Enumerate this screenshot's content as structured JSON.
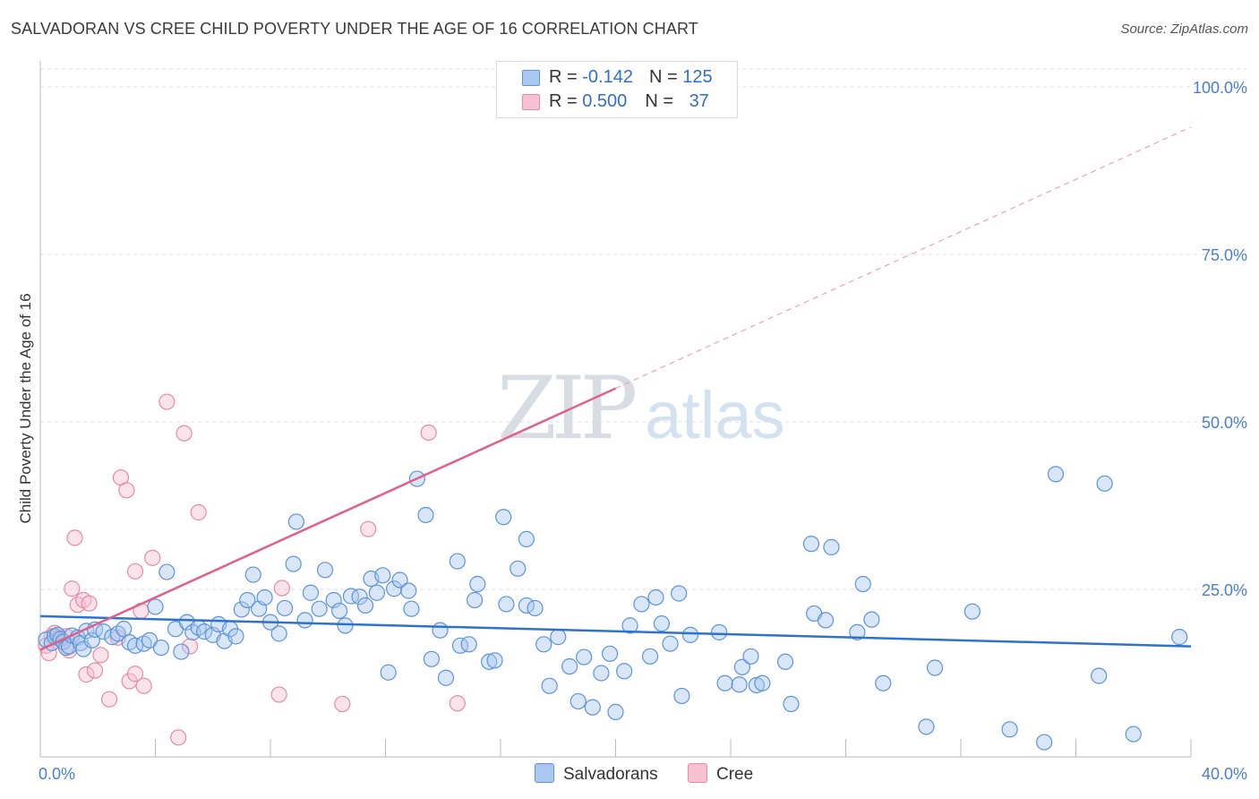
{
  "header": {
    "title": "SALVADORAN VS CREE CHILD POVERTY UNDER THE AGE OF 16 CORRELATION CHART",
    "source": "Source: ZipAtlas.com"
  },
  "watermark": {
    "zip": "ZIP",
    "atlas": "atlas"
  },
  "stats": {
    "row1": {
      "r_label": "R = ",
      "r_value": "-0.142",
      "n_label": "N = ",
      "n_value": "125"
    },
    "row2": {
      "r_label": "R = ",
      "r_value": "0.500",
      "n_label": "N = ",
      "n_value": "37"
    }
  },
  "legend": {
    "series1": "Salvadorans",
    "series2": "Cree"
  },
  "colors": {
    "blue_fill": "#a9c8ef",
    "blue_stroke": "#5c93d9",
    "blue_line": "#2f72cc",
    "pink_fill": "#f6c1d0",
    "pink_stroke": "#e88aa7",
    "pink_line": "#e0608b",
    "tick_text": "#4a7fd0",
    "grid": "#dddddd"
  },
  "chart_data": {
    "type": "scatter",
    "title": "SALVADORAN VS CREE CHILD POVERTY UNDER THE AGE OF 16 CORRELATION CHART",
    "xlabel": "",
    "ylabel": "Child Poverty Under the Age of 16",
    "xlim": [
      0,
      40
    ],
    "ylim": [
      0,
      105
    ],
    "x_tick_labels": {
      "left": "0.0%",
      "right": "40.0%"
    },
    "y_ticks": [
      25,
      50,
      75,
      100
    ],
    "y_tick_labels": [
      "25.0%",
      "50.0%",
      "75.0%",
      "100.0%"
    ],
    "grid": true,
    "legend_position": "bottom-center",
    "series": [
      {
        "name": "Salvadorans",
        "r": -0.142,
        "n": 125,
        "trend": {
          "x": [
            0,
            40
          ],
          "y": [
            21.0,
            16.5
          ]
        },
        "points": [
          [
            0.2,
            17.5
          ],
          [
            0.4,
            17
          ],
          [
            0.5,
            18
          ],
          [
            0.6,
            18.2
          ],
          [
            0.7,
            17.6
          ],
          [
            0.8,
            17.2
          ],
          [
            0.9,
            16.3
          ],
          [
            1.0,
            16.5
          ],
          [
            1.1,
            18.1
          ],
          [
            1.3,
            17.8
          ],
          [
            1.4,
            17
          ],
          [
            1.5,
            16.1
          ],
          [
            1.6,
            18.8
          ],
          [
            1.8,
            17.4
          ],
          [
            1.9,
            19
          ],
          [
            2.2,
            18.7
          ],
          [
            2.5,
            17.9
          ],
          [
            2.7,
            18.4
          ],
          [
            2.9,
            19.1
          ],
          [
            3.1,
            17.1
          ],
          [
            3.3,
            16.6
          ],
          [
            3.6,
            16.9
          ],
          [
            3.8,
            17.4
          ],
          [
            4.0,
            22.4
          ],
          [
            4.2,
            16.3
          ],
          [
            4.4,
            27.6
          ],
          [
            4.7,
            19.1
          ],
          [
            4.9,
            15.7
          ],
          [
            5.1,
            20.1
          ],
          [
            5.3,
            18.6
          ],
          [
            5.5,
            19.3
          ],
          [
            5.7,
            18.7
          ],
          [
            6.0,
            18.2
          ],
          [
            6.2,
            19.8
          ],
          [
            6.4,
            17.3
          ],
          [
            6.6,
            19.1
          ],
          [
            6.8,
            18.0
          ],
          [
            7.0,
            22.0
          ],
          [
            7.2,
            23.4
          ],
          [
            7.4,
            27.2
          ],
          [
            7.6,
            22.1
          ],
          [
            7.8,
            23.8
          ],
          [
            8.0,
            20.1
          ],
          [
            8.3,
            18.4
          ],
          [
            8.5,
            22.2
          ],
          [
            8.8,
            28.8
          ],
          [
            8.9,
            35.1
          ],
          [
            9.2,
            20.4
          ],
          [
            9.4,
            24.5
          ],
          [
            9.7,
            22.1
          ],
          [
            9.9,
            27.9
          ],
          [
            10.2,
            23.4
          ],
          [
            10.4,
            21.8
          ],
          [
            10.6,
            19.6
          ],
          [
            10.8,
            24.0
          ],
          [
            11.1,
            23.9
          ],
          [
            11.3,
            22.6
          ],
          [
            11.5,
            26.6
          ],
          [
            11.7,
            24.5
          ],
          [
            11.9,
            27.1
          ],
          [
            12.1,
            12.6
          ],
          [
            12.3,
            25.1
          ],
          [
            12.5,
            26.4
          ],
          [
            12.8,
            24.8
          ],
          [
            12.9,
            22.1
          ],
          [
            13.1,
            41.5
          ],
          [
            13.4,
            36.1
          ],
          [
            13.6,
            14.6
          ],
          [
            13.9,
            18.9
          ],
          [
            14.1,
            11.8
          ],
          [
            14.5,
            29.2
          ],
          [
            14.6,
            16.6
          ],
          [
            14.9,
            16.8
          ],
          [
            15.1,
            23.4
          ],
          [
            15.2,
            25.8
          ],
          [
            15.6,
            14.2
          ],
          [
            15.8,
            14.4
          ],
          [
            16.1,
            35.8
          ],
          [
            16.2,
            22.8
          ],
          [
            16.6,
            28.1
          ],
          [
            16.9,
            32.5
          ],
          [
            16.9,
            22.6
          ],
          [
            17.2,
            22.2
          ],
          [
            17.5,
            16.8
          ],
          [
            17.7,
            10.6
          ],
          [
            18.0,
            17.9
          ],
          [
            18.4,
            13.5
          ],
          [
            18.7,
            8.3
          ],
          [
            18.9,
            14.9
          ],
          [
            19.2,
            7.4
          ],
          [
            19.5,
            12.5
          ],
          [
            19.8,
            15.4
          ],
          [
            20.0,
            6.7
          ],
          [
            20.3,
            12.8
          ],
          [
            20.5,
            19.6
          ],
          [
            20.9,
            22.8
          ],
          [
            21.2,
            15.0
          ],
          [
            21.4,
            23.8
          ],
          [
            21.6,
            19.9
          ],
          [
            21.9,
            16.9
          ],
          [
            22.2,
            24.4
          ],
          [
            22.3,
            9.1
          ],
          [
            22.6,
            18.2
          ],
          [
            23.6,
            18.6
          ],
          [
            23.8,
            11.0
          ],
          [
            24.3,
            10.8
          ],
          [
            24.4,
            13.4
          ],
          [
            24.7,
            15.0
          ],
          [
            24.9,
            10.7
          ],
          [
            25.1,
            11.0
          ],
          [
            25.9,
            14.2
          ],
          [
            26.1,
            7.9
          ],
          [
            26.8,
            31.8
          ],
          [
            26.9,
            21.4
          ],
          [
            27.3,
            20.4
          ],
          [
            27.5,
            31.3
          ],
          [
            28.4,
            18.6
          ],
          [
            28.6,
            25.8
          ],
          [
            28.9,
            20.5
          ],
          [
            29.3,
            11.0
          ],
          [
            30.8,
            4.5
          ],
          [
            31.1,
            13.3
          ],
          [
            32.4,
            21.7
          ],
          [
            33.7,
            4.1
          ],
          [
            34.9,
            2.2
          ],
          [
            35.3,
            42.2
          ],
          [
            36.8,
            12.1
          ],
          [
            37.0,
            40.8
          ],
          [
            38.0,
            3.4
          ],
          [
            39.6,
            17.9
          ]
        ]
      },
      {
        "name": "Cree",
        "r": 0.5,
        "n": 37,
        "trend": {
          "x": [
            0,
            20
          ],
          "y": [
            16,
            55
          ]
        },
        "trend_dashed_extension": {
          "x": [
            20,
            40
          ],
          "y": [
            55,
            94
          ]
        },
        "points": [
          [
            0.2,
            16.6
          ],
          [
            0.3,
            15.5
          ],
          [
            0.4,
            18.0
          ],
          [
            0.5,
            18.5
          ],
          [
            0.6,
            17.7
          ],
          [
            0.8,
            17.1
          ],
          [
            0.9,
            18.0
          ],
          [
            1.0,
            15.9
          ],
          [
            1.1,
            25.1
          ],
          [
            1.2,
            32.7
          ],
          [
            1.3,
            22.7
          ],
          [
            1.5,
            23.4
          ],
          [
            1.6,
            12.3
          ],
          [
            1.7,
            22.9
          ],
          [
            1.9,
            12.9
          ],
          [
            2.1,
            15.2
          ],
          [
            2.4,
            8.6
          ],
          [
            2.7,
            17.8
          ],
          [
            2.8,
            41.7
          ],
          [
            3.0,
            39.8
          ],
          [
            3.1,
            11.3
          ],
          [
            3.3,
            27.7
          ],
          [
            3.3,
            12.4
          ],
          [
            3.5,
            21.8
          ],
          [
            3.6,
            10.6
          ],
          [
            3.9,
            29.7
          ],
          [
            4.4,
            53.0
          ],
          [
            4.8,
            2.9
          ],
          [
            5.0,
            48.3
          ],
          [
            5.2,
            16.5
          ],
          [
            5.5,
            36.5
          ],
          [
            8.3,
            9.3
          ],
          [
            8.4,
            25.2
          ],
          [
            10.5,
            7.9
          ],
          [
            11.4,
            34.0
          ],
          [
            13.5,
            48.4
          ],
          [
            14.5,
            8.0
          ]
        ]
      }
    ]
  }
}
